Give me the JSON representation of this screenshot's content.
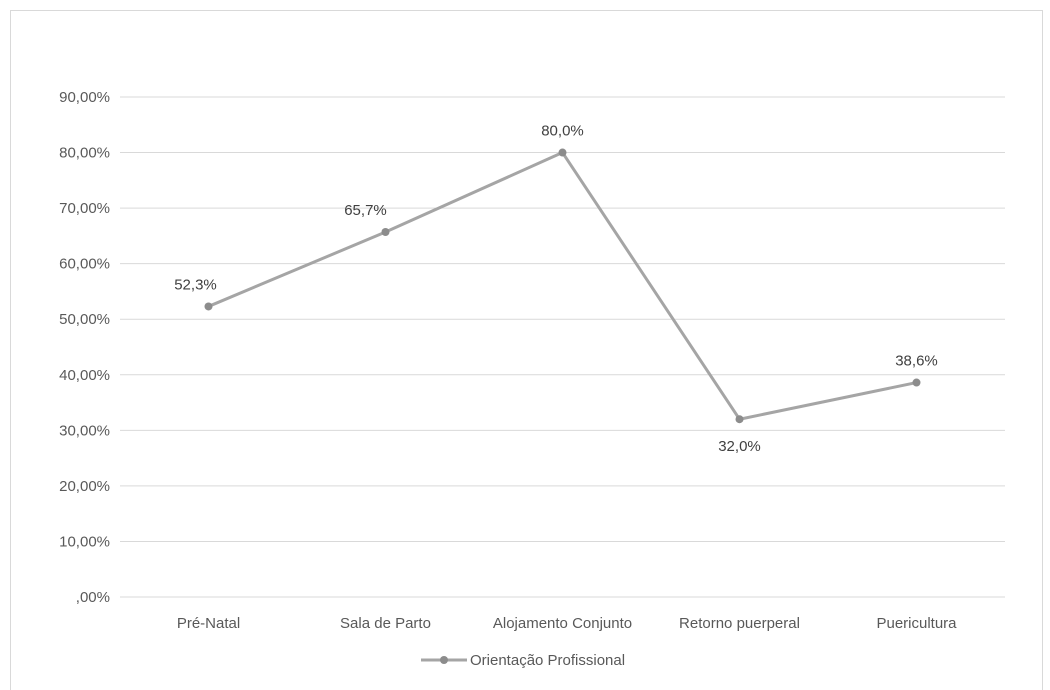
{
  "chart_data": {
    "type": "line",
    "title": "",
    "xlabel": "",
    "ylabel": "",
    "categories": [
      "Pré-Natal",
      "Sala de Parto",
      "Alojamento Conjunto",
      "Retorno puerperal",
      "Puericultura"
    ],
    "series": [
      {
        "name": "Orientação Profissional",
        "values": [
          52.3,
          65.7,
          80.0,
          32.0,
          38.6
        ],
        "data_labels": [
          "52,3%",
          "65,7%",
          "80,0%",
          "32,0%",
          "38,6%"
        ],
        "color": "#a5a5a5"
      }
    ],
    "ylim": [
      0,
      90
    ],
    "yticks": [
      0,
      10,
      20,
      30,
      40,
      50,
      60,
      70,
      80,
      90
    ],
    "ytick_labels": [
      ",00%",
      "10,00%",
      "20,00%",
      "30,00%",
      "40,00%",
      "50,00%",
      "60,00%",
      "70,00%",
      "80,00%",
      "90,00%"
    ],
    "grid": true,
    "legend_position": "bottom"
  }
}
